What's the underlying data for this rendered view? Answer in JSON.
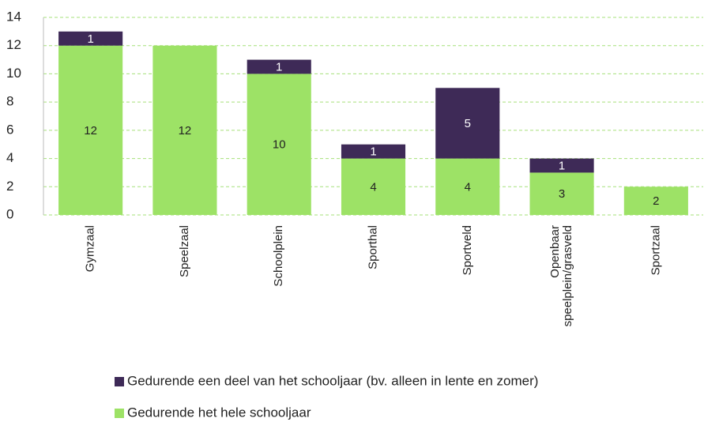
{
  "chart_data": {
    "type": "stacked_bar",
    "categories": [
      "Gymzaal",
      "Speelzaal",
      "Schoolplein",
      "Sporthal",
      "Sportveld",
      "Openbaar speelplein/grasveld",
      "Sportzaal"
    ],
    "series": [
      {
        "name": "Gedurende het hele schooljaar",
        "color": "#9de266",
        "values": [
          12,
          12,
          10,
          4,
          4,
          3,
          2
        ]
      },
      {
        "name": "Gedurende een deel van het schooljaar (bv. alleen in lente en zomer)",
        "color": "#3e2a57",
        "values": [
          1,
          null,
          1,
          1,
          5,
          1,
          null
        ]
      }
    ],
    "ylim": [
      0,
      14
    ],
    "yticks": [
      0,
      2,
      4,
      6,
      8,
      10,
      12,
      14
    ],
    "grid": true,
    "legend": "bottom"
  }
}
